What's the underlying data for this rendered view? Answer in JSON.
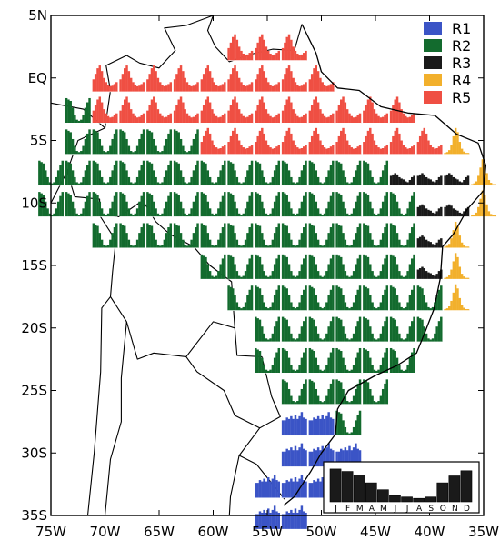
{
  "axes": {
    "lon_min": -75,
    "lon_max": -35,
    "lat_min": -35,
    "lat_max": 5,
    "x_ticks": [
      {
        "value": -75,
        "label": "75W"
      },
      {
        "value": -70,
        "label": "70W"
      },
      {
        "value": -65,
        "label": "65W"
      },
      {
        "value": -60,
        "label": "60W"
      },
      {
        "value": -55,
        "label": "55W"
      },
      {
        "value": -50,
        "label": "50W"
      },
      {
        "value": -45,
        "label": "45W"
      },
      {
        "value": -40,
        "label": "40W"
      },
      {
        "value": -35,
        "label": "35W"
      }
    ],
    "y_ticks": [
      {
        "value": 5,
        "label": "5N"
      },
      {
        "value": 0,
        "label": "EQ"
      },
      {
        "value": -5,
        "label": "5S"
      },
      {
        "value": -10,
        "label": "10S"
      },
      {
        "value": -15,
        "label": "15S"
      },
      {
        "value": -20,
        "label": "20S"
      },
      {
        "value": -25,
        "label": "25S"
      },
      {
        "value": -30,
        "label": "30S"
      },
      {
        "value": -35,
        "label": "35S"
      }
    ]
  },
  "legend": [
    {
      "key": "R1",
      "label": "R1",
      "color": "#3b54c6"
    },
    {
      "key": "R2",
      "label": "R2",
      "color": "#136b2e"
    },
    {
      "key": "R3",
      "label": "R3",
      "color": "#1a1a1a"
    },
    {
      "key": "R4",
      "label": "R4",
      "color": "#f2b02c"
    },
    {
      "key": "R5",
      "label": "R5",
      "color": "#ef4f43"
    }
  ],
  "inset": {
    "months": [
      "J",
      "F",
      "M",
      "A",
      "M",
      "J",
      "J",
      "A",
      "S",
      "O",
      "N",
      "D"
    ],
    "values": [
      0.95,
      0.88,
      0.78,
      0.55,
      0.35,
      0.18,
      0.14,
      0.1,
      0.14,
      0.55,
      0.75,
      0.9
    ],
    "color": "#1a1a1a"
  },
  "regions": {
    "R1": {
      "color": "#3b54c6",
      "profile": [
        0.55,
        0.55,
        0.65,
        0.6,
        0.7,
        0.6,
        0.75,
        0.6,
        0.7,
        0.85,
        0.65,
        0.6
      ]
    },
    "R2": {
      "color": "#136b2e",
      "profile": [
        0.9,
        0.85,
        0.8,
        0.55,
        0.3,
        0.12,
        0.08,
        0.12,
        0.3,
        0.55,
        0.75,
        0.9
      ]
    },
    "R3": {
      "color": "#1a1a1a",
      "profile": [
        0.35,
        0.4,
        0.45,
        0.4,
        0.3,
        0.25,
        0.22,
        0.15,
        0.12,
        0.2,
        0.3,
        0.35
      ]
    },
    "R4": {
      "color": "#f2b02c",
      "profile": [
        0.05,
        0.08,
        0.15,
        0.35,
        0.65,
        0.95,
        0.8,
        0.45,
        0.2,
        0.1,
        0.05,
        0.05
      ]
    },
    "R5": {
      "color": "#ef4f43",
      "profile": [
        0.45,
        0.65,
        0.85,
        0.95,
        0.75,
        0.5,
        0.35,
        0.25,
        0.2,
        0.22,
        0.28,
        0.35
      ]
    }
  },
  "rows": [
    {
      "lat": 2.5,
      "region": "R5",
      "lons": [
        -57.5,
        -55,
        -52.5
      ]
    },
    {
      "lat": 0,
      "region": "R5",
      "lons": [
        -70,
        -67.5,
        -65,
        -62.5,
        -60,
        -57.5,
        -55,
        -52.5,
        -50
      ]
    },
    {
      "lat": -2.5,
      "region": "R5",
      "lons": [
        -70,
        -67.5,
        -65,
        -62.5,
        -60,
        -57.5,
        -55,
        -52.5,
        -50,
        -47.5,
        -45,
        -42.5
      ]
    },
    {
      "lat": -2.5,
      "region": "R2",
      "lons": [
        -72.5
      ]
    },
    {
      "lat": -5,
      "region": "R2",
      "lons": [
        -72.5,
        -70,
        -67.5,
        -65,
        -62.5
      ]
    },
    {
      "lat": -5,
      "region": "R5",
      "lons": [
        -60,
        -57.5,
        -55,
        -52.5,
        -50,
        -47.5,
        -45,
        -42.5,
        -40
      ]
    },
    {
      "lat": -5,
      "region": "R4",
      "lons": [
        -37.5
      ]
    },
    {
      "lat": -7.5,
      "region": "R2",
      "lons": [
        -75,
        -72.5,
        -70,
        -67.5,
        -65,
        -62.5,
        -60,
        -57.5,
        -55,
        -52.5,
        -50,
        -47.5,
        -45
      ]
    },
    {
      "lat": -7.5,
      "region": "R3",
      "lons": [
        -42.5,
        -40,
        -37.5
      ]
    },
    {
      "lat": -7.5,
      "region": "R4",
      "lons": [
        -35
      ]
    },
    {
      "lat": -10,
      "region": "R2",
      "lons": [
        -75,
        -72.5,
        -70,
        -67.5,
        -65,
        -62.5,
        -60,
        -57.5,
        -55,
        -52.5,
        -50,
        -47.5,
        -45,
        -42.5
      ]
    },
    {
      "lat": -10,
      "region": "R3",
      "lons": [
        -40,
        -37.5
      ]
    },
    {
      "lat": -10,
      "region": "R4",
      "lons": [
        -35
      ]
    },
    {
      "lat": -12.5,
      "region": "R2",
      "lons": [
        -70,
        -67.5,
        -65,
        -62.5,
        -60,
        -57.5,
        -55,
        -52.5,
        -50,
        -47.5,
        -45,
        -42.5
      ]
    },
    {
      "lat": -12.5,
      "region": "R3",
      "lons": [
        -40
      ]
    },
    {
      "lat": -12.5,
      "region": "R4",
      "lons": [
        -37.5
      ]
    },
    {
      "lat": -15,
      "region": "R2",
      "lons": [
        -60,
        -57.5,
        -55,
        -52.5,
        -50,
        -47.5,
        -45,
        -42.5
      ]
    },
    {
      "lat": -15,
      "region": "R3",
      "lons": [
        -40
      ]
    },
    {
      "lat": -15,
      "region": "R4",
      "lons": [
        -37.5
      ]
    },
    {
      "lat": -17.5,
      "region": "R2",
      "lons": [
        -57.5,
        -55,
        -52.5,
        -50,
        -47.5,
        -45,
        -42.5,
        -40
      ]
    },
    {
      "lat": -17.5,
      "region": "R4",
      "lons": [
        -37.5
      ]
    },
    {
      "lat": -20,
      "region": "R2",
      "lons": [
        -55,
        -52.5,
        -50,
        -47.5,
        -45,
        -42.5,
        -40
      ]
    },
    {
      "lat": -22.5,
      "region": "R2",
      "lons": [
        -55,
        -52.5,
        -50,
        -47.5,
        -45,
        -42.5
      ]
    },
    {
      "lat": -25,
      "region": "R2",
      "lons": [
        -52.5,
        -50,
        -47.5,
        -45
      ]
    },
    {
      "lat": -27.5,
      "region": "R1",
      "lons": [
        -52.5,
        -50
      ]
    },
    {
      "lat": -27.5,
      "region": "R2",
      "lons": [
        -47.5
      ]
    },
    {
      "lat": -30,
      "region": "R1",
      "lons": [
        -52.5,
        -50,
        -47.5
      ]
    },
    {
      "lat": -32.5,
      "region": "R1",
      "lons": [
        -55,
        -52.5,
        -50,
        -47.5
      ]
    },
    {
      "lat": -35,
      "region": "R1",
      "lons": [
        -55,
        -52.5
      ]
    }
  ],
  "coastline": [
    [
      -51.8,
      4.3
    ],
    [
      -50.5,
      2.0
    ],
    [
      -50.0,
      0.5
    ],
    [
      -48.5,
      -0.8
    ],
    [
      -46.5,
      -1.0
    ],
    [
      -44.5,
      -2.3
    ],
    [
      -42.0,
      -2.8
    ],
    [
      -39.5,
      -3.0
    ],
    [
      -37.5,
      -4.5
    ],
    [
      -35.5,
      -5.2
    ],
    [
      -34.8,
      -7.0
    ],
    [
      -35.0,
      -9.0
    ],
    [
      -36.5,
      -10.5
    ],
    [
      -37.8,
      -12.5
    ],
    [
      -38.8,
      -13.5
    ],
    [
      -39.0,
      -16.0
    ],
    [
      -39.6,
      -18.5
    ],
    [
      -40.5,
      -20.5
    ],
    [
      -41.2,
      -22.0
    ],
    [
      -43.0,
      -23.0
    ],
    [
      -45.0,
      -23.8
    ],
    [
      -47.5,
      -25.0
    ],
    [
      -48.5,
      -26.5
    ],
    [
      -48.7,
      -28.5
    ],
    [
      -50.0,
      -30.0
    ],
    [
      -51.0,
      -31.5
    ],
    [
      -52.5,
      -33.5
    ],
    [
      -53.5,
      -34.2
    ]
  ],
  "borders": [
    [
      [
        -60.0,
        5.0
      ],
      [
        -60.5,
        3.8
      ],
      [
        -59.8,
        2.5
      ],
      [
        -58.5,
        1.3
      ],
      [
        -56.5,
        1.9
      ],
      [
        -54.5,
        2.3
      ],
      [
        -52.5,
        2.2
      ],
      [
        -51.8,
        4.3
      ]
    ],
    [
      [
        -69.9,
        1.0
      ],
      [
        -68.0,
        1.8
      ],
      [
        -66.8,
        1.2
      ],
      [
        -65.0,
        0.8
      ],
      [
        -63.5,
        2.2
      ],
      [
        -64.5,
        4.0
      ],
      [
        -62.5,
        4.2
      ],
      [
        -60.0,
        5.0
      ]
    ],
    [
      [
        -69.9,
        1.0
      ],
      [
        -69.5,
        -1.0
      ],
      [
        -70.0,
        -4.0
      ],
      [
        -72.5,
        -5.0
      ],
      [
        -73.5,
        -7.5
      ],
      [
        -72.8,
        -9.5
      ],
      [
        -70.5,
        -9.7
      ],
      [
        -70.5,
        -11.0
      ],
      [
        -68.7,
        -11.1
      ],
      [
        -66.5,
        -9.8
      ],
      [
        -65.3,
        -11.5
      ],
      [
        -64.0,
        -12.5
      ],
      [
        -61.8,
        -13.5
      ],
      [
        -60.3,
        -15.0
      ],
      [
        -58.3,
        -16.3
      ],
      [
        -58.0,
        -20.0
      ],
      [
        -57.8,
        -22.2
      ],
      [
        -55.5,
        -22.3
      ],
      [
        -54.6,
        -25.5
      ],
      [
        -53.8,
        -27.1
      ],
      [
        -55.7,
        -28.0
      ],
      [
        -57.6,
        -30.2
      ],
      [
        -56.0,
        -30.9
      ],
      [
        -53.4,
        -33.7
      ]
    ],
    [
      [
        -75.0,
        -2.0
      ],
      [
        -72.0,
        -2.5
      ],
      [
        -70.0,
        -4.0
      ]
    ],
    [
      [
        -75.0,
        -10.0
      ],
      [
        -73.5,
        -7.5
      ]
    ],
    [
      [
        -70.5,
        -11.0
      ],
      [
        -69.0,
        -13.0
      ],
      [
        -69.3,
        -15.5
      ],
      [
        -69.5,
        -17.5
      ],
      [
        -68.0,
        -19.5
      ],
      [
        -67.0,
        -22.5
      ],
      [
        -65.5,
        -22.0
      ],
      [
        -62.5,
        -22.3
      ],
      [
        -60.0,
        -19.5
      ],
      [
        -58.0,
        -20.0
      ]
    ],
    [
      [
        -62.5,
        -22.3
      ],
      [
        -61.5,
        -23.5
      ],
      [
        -59.0,
        -25.0
      ],
      [
        -58.0,
        -27.0
      ],
      [
        -55.7,
        -28.0
      ]
    ],
    [
      [
        -69.5,
        -17.5
      ],
      [
        -70.3,
        -18.4
      ],
      [
        -70.4,
        -23.5
      ],
      [
        -71.0,
        -30.0
      ],
      [
        -71.6,
        -35.0
      ]
    ],
    [
      [
        -68.0,
        -19.5
      ],
      [
        -68.5,
        -24.0
      ],
      [
        -68.5,
        -27.5
      ],
      [
        -69.5,
        -30.5
      ],
      [
        -70.0,
        -35.0
      ]
    ],
    [
      [
        -57.6,
        -30.2
      ],
      [
        -58.4,
        -33.5
      ],
      [
        -58.5,
        -35.0
      ]
    ]
  ]
}
